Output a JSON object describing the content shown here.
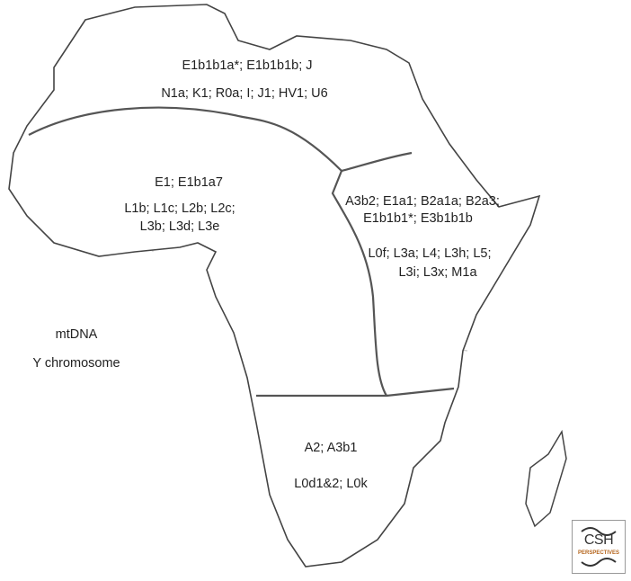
{
  "labels": {
    "north_y": "E1b1b1a*; E1b1b1b; J",
    "north_mt": "N1a; K1; R0a; I; J1; HV1; U6",
    "west_y": "E1; E1b1a7",
    "west_mt_1": "L1b; L1c; L2b; L2c;",
    "west_mt_2": "L3b; L3d; L3e",
    "east_y_1": "A3b2; E1a1; B2a1a; B2a3;",
    "east_y_2": "E1b1b1*; E3b1b1b",
    "east_mt_1": "L0f; L3a; L4; L3h; L5;",
    "east_mt_2": "L3i; L3x; M1a",
    "south_y": "A2; A3b1",
    "south_mt": "L0d1&2; L0k"
  },
  "legend": {
    "mtdna": "mtDNA",
    "y": "Y chromosome"
  },
  "logo": {
    "line1": "CSH",
    "line2": "PERSPECTIVES"
  },
  "colors": {
    "coast": "#444444",
    "borders": "#c8c8c8",
    "regions": "#555555",
    "logo_accent": "#b5651d"
  }
}
